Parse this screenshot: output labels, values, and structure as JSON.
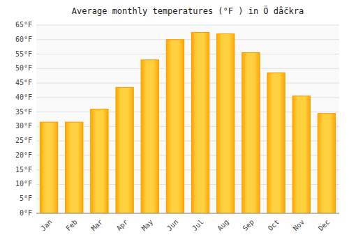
{
  "chart_data": {
    "type": "bar",
    "title": "Average monthly temperatures (°F ) in Ö dåčkra",
    "categories": [
      "Jan",
      "Feb",
      "Mar",
      "Apr",
      "May",
      "Jun",
      "Jul",
      "Aug",
      "Sep",
      "Oct",
      "Nov",
      "Dec"
    ],
    "values": [
      31.5,
      31.5,
      36.0,
      43.5,
      53.0,
      60.0,
      62.5,
      62.0,
      55.5,
      48.5,
      40.5,
      34.5
    ],
    "color": "#FFD040",
    "ylim": [
      0,
      65
    ],
    "yticks": [
      {
        "value": 0,
        "label": "0°F"
      },
      {
        "value": 5,
        "label": "5°F"
      },
      {
        "value": 10,
        "label": "10°F"
      },
      {
        "value": 15,
        "label": "15°F"
      },
      {
        "value": 20,
        "label": "20°F"
      },
      {
        "value": 25,
        "label": "25°F"
      },
      {
        "value": 30,
        "label": "30°F"
      },
      {
        "value": 35,
        "label": "35°F"
      },
      {
        "value": 40,
        "label": "40°F"
      },
      {
        "value": 45,
        "label": "45°F"
      },
      {
        "value": 50,
        "label": "50°F"
      },
      {
        "value": 55,
        "label": "55°F"
      },
      {
        "value": 60,
        "label": "60°F"
      },
      {
        "value": 65,
        "label": "65°F"
      }
    ],
    "grid": true
  }
}
